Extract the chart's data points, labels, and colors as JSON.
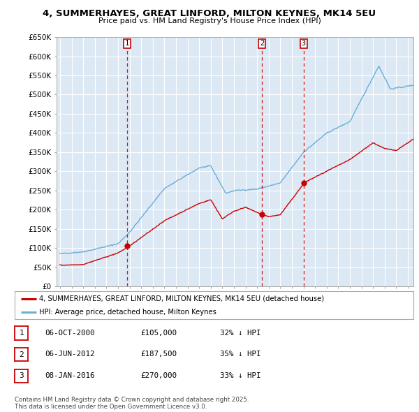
{
  "title": "4, SUMMERHAYES, GREAT LINFORD, MILTON KEYNES, MK14 5EU",
  "subtitle": "Price paid vs. HM Land Registry's House Price Index (HPI)",
  "hpi_color": "#6baed6",
  "price_color": "#cc0000",
  "sale_line_color": "#cc0000",
  "background_color": "#ffffff",
  "chart_bg_color": "#dce9f5",
  "grid_color": "#ffffff",
  "ylim": [
    0,
    650000
  ],
  "yticks": [
    0,
    50000,
    100000,
    150000,
    200000,
    250000,
    300000,
    350000,
    400000,
    450000,
    500000,
    550000,
    600000,
    650000
  ],
  "sales": [
    {
      "date_num": 2000.76,
      "price": 105000,
      "label": "1",
      "date_str": "06-OCT-2000",
      "pct": "32% ↓ HPI"
    },
    {
      "date_num": 2012.43,
      "price": 187500,
      "label": "2",
      "date_str": "06-JUN-2012",
      "pct": "35% ↓ HPI"
    },
    {
      "date_num": 2016.02,
      "price": 270000,
      "label": "3",
      "date_str": "08-JAN-2016",
      "pct": "33% ↓ HPI"
    }
  ],
  "legend_red": "4, SUMMERHAYES, GREAT LINFORD, MILTON KEYNES, MK14 5EU (detached house)",
  "legend_blue": "HPI: Average price, detached house, Milton Keynes",
  "footer": "Contains HM Land Registry data © Crown copyright and database right 2025.\nThis data is licensed under the Open Government Licence v3.0.",
  "table_entries": [
    [
      "1",
      "06-OCT-2000",
      "£105,000",
      "32% ↓ HPI"
    ],
    [
      "2",
      "06-JUN-2012",
      "£187,500",
      "35% ↓ HPI"
    ],
    [
      "3",
      "08-JAN-2016",
      "£270,000",
      "33% ↓ HPI"
    ]
  ]
}
